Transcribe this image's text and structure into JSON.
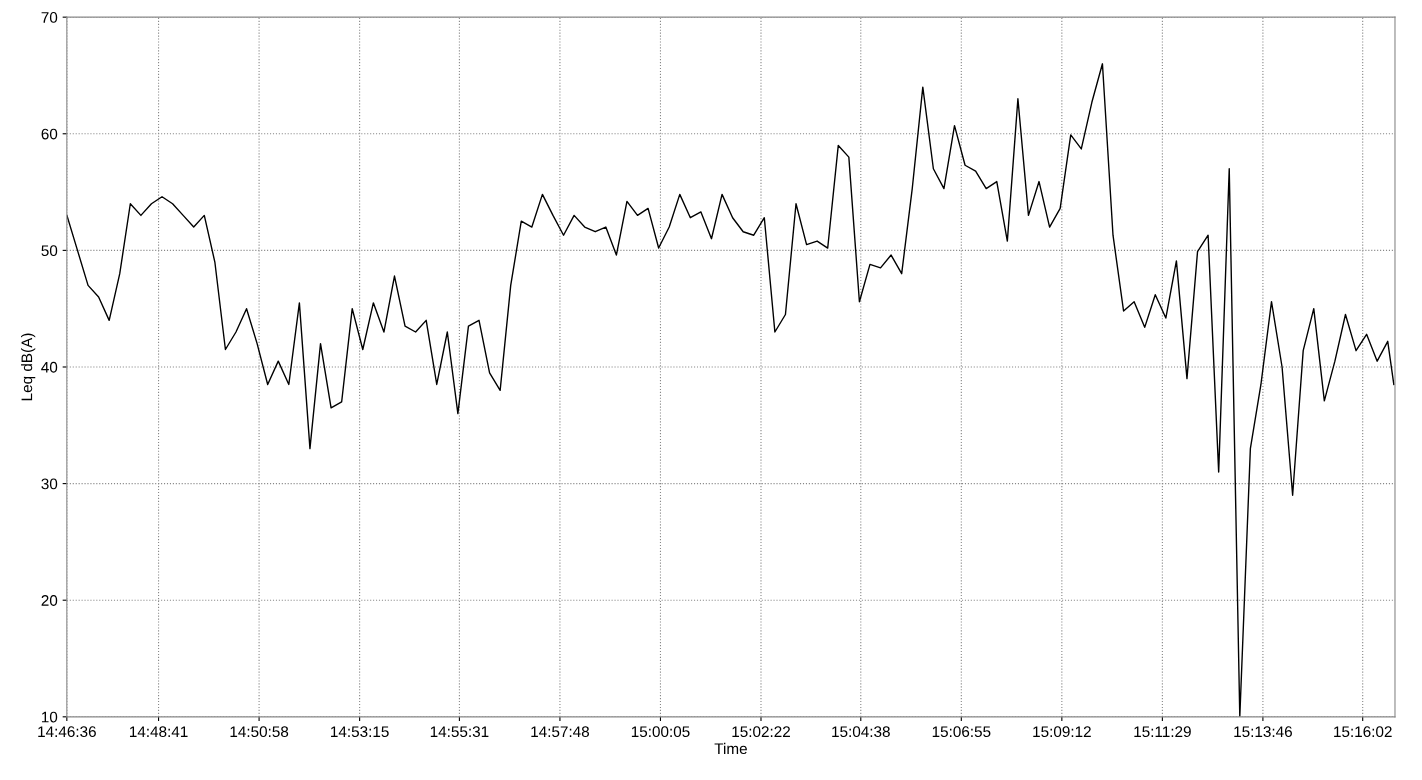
{
  "chart_data": {
    "type": "line",
    "xlabel": "Time",
    "ylabel": "Leq dB(A)",
    "x": [
      14.7767,
      14.7807,
      14.7847,
      14.7887,
      14.7927,
      14.7967,
      14.8007,
      14.8047,
      14.8087,
      14.8127,
      14.8167,
      14.8207,
      14.8247,
      14.8287,
      14.8327,
      14.8367,
      14.8407,
      14.8447,
      14.8487,
      14.8527,
      14.8567,
      14.8607,
      14.8647,
      14.8687,
      14.8727,
      14.8767,
      14.8807,
      14.8847,
      14.8887,
      14.8927,
      14.8967,
      14.9007,
      14.9047,
      14.9087,
      14.9127,
      14.9167,
      14.9207,
      14.9247,
      14.9287,
      14.9327,
      14.9367,
      14.9407,
      14.9447,
      14.9487,
      14.9527,
      14.9567,
      14.9607,
      14.9647,
      14.9687,
      14.9727,
      14.9767,
      14.9807,
      14.9847,
      14.9887,
      14.9927,
      14.9967,
      15.0007,
      15.0047,
      15.0087,
      15.0127,
      15.0167,
      15.0207,
      15.0247,
      15.0287,
      15.0327,
      15.0367,
      15.0407,
      15.0447,
      15.0487,
      15.0527,
      15.0567,
      15.0607,
      15.0647,
      15.0687,
      15.0727,
      15.0767,
      15.0807,
      15.0847,
      15.0887,
      15.0927,
      15.0967,
      15.1007,
      15.1047,
      15.1087,
      15.1127,
      15.1167,
      15.1207,
      15.1247,
      15.1287,
      15.1327,
      15.1367,
      15.1407,
      15.1447,
      15.1487,
      15.1527,
      15.1567,
      15.1607,
      15.1647,
      15.1687,
      15.1727,
      15.1767,
      15.1807,
      15.1847,
      15.1887,
      15.1927,
      15.1967,
      15.2007,
      15.2047,
      15.2087,
      15.2127,
      15.2167,
      15.2207,
      15.2247,
      15.2287,
      15.2327,
      15.2367,
      15.2407,
      15.2447,
      15.2487,
      15.2527,
      15.2567,
      15.2607,
      15.2647,
      15.2687,
      15.2727,
      15.2767,
      15.279
    ],
    "series": [
      {
        "color": "#000000",
        "values": [
          53,
          50,
          47,
          46,
          44,
          48,
          54,
          53,
          54,
          54.6,
          54,
          53,
          52,
          53,
          49,
          41.5,
          43,
          45,
          42,
          38.5,
          40.5,
          38.5,
          45.5,
          33,
          42,
          36.5,
          37,
          45,
          41.5,
          45.5,
          43,
          47.8,
          43.5,
          43,
          44,
          38.5,
          43,
          36,
          43.5,
          44,
          39.5,
          38,
          47,
          52.5,
          52,
          54.8,
          53,
          51.3,
          53,
          52,
          51.6,
          52,
          49.6,
          54.2,
          53,
          53.6,
          50.2,
          52,
          54.8,
          52.8,
          53.3,
          51,
          54.8,
          52.8,
          51.6,
          51.3,
          52.8,
          43,
          44.5,
          54,
          50.5,
          50.8,
          50.2,
          59,
          58,
          45.6,
          48.8,
          48.5,
          49.6,
          48,
          55.3,
          64,
          57,
          55.3,
          60.7,
          57.3,
          56.8,
          55.3,
          55.9,
          50.8,
          63,
          53,
          55.9,
          52,
          53.6,
          59.9,
          58.7,
          62.7,
          66,
          51.3,
          44.8,
          45.6,
          43.4,
          46.2,
          44.2,
          49.1,
          39,
          49.9,
          51.3,
          31,
          57,
          10,
          33,
          38.5,
          45.6,
          40,
          29,
          41.4,
          45,
          37.1,
          40.5,
          44.5,
          41.4,
          42.8,
          40.5,
          42.2,
          38.5
        ]
      }
    ],
    "xlim": [
      14.776667,
      15.279444
    ],
    "xticks": [
      {
        "value": 14.776667,
        "label": "14:46:36"
      },
      {
        "value": 14.811389,
        "label": "14:48:41"
      },
      {
        "value": 14.849444,
        "label": "14:50:58"
      },
      {
        "value": 14.8875,
        "label": "14:53:15"
      },
      {
        "value": 14.925278,
        "label": "14:55:31"
      },
      {
        "value": 14.963333,
        "label": "14:57:48"
      },
      {
        "value": 15.001389,
        "label": "15:00:05"
      },
      {
        "value": 15.039444,
        "label": "15:02:22"
      },
      {
        "value": 15.077222,
        "label": "15:04:38"
      },
      {
        "value": 15.115278,
        "label": "15:06:55"
      },
      {
        "value": 15.153333,
        "label": "15:09:12"
      },
      {
        "value": 15.191389,
        "label": "15:11:29"
      },
      {
        "value": 15.229444,
        "label": "15:13:46"
      },
      {
        "value": 15.267222,
        "label": "15:16:02"
      }
    ],
    "ylim": [
      10,
      70
    ],
    "yticks": [
      10,
      20,
      30,
      40,
      50,
      60,
      70
    ],
    "grid": true,
    "marker": "none",
    "line_style": "solid"
  }
}
